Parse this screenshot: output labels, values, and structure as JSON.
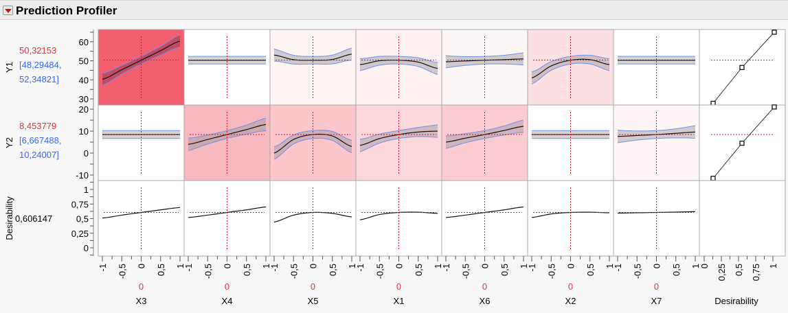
{
  "header": {
    "title": "Prediction Profiler",
    "menu_icon": "red-triangle-menu-icon"
  },
  "colors": {
    "current_value": "#e8303c",
    "ci": "#3c64ff",
    "refline": "#e0102a",
    "ci_band": "#d3d3d3",
    "ci_edge": "#7090e8"
  },
  "responses": [
    {
      "name": "Y1",
      "value": "50,32153",
      "ci_low": "[48,29484,",
      "ci_high": "52,34821]",
      "current": 50.32153,
      "ylim": [
        26.8,
        66.4
      ],
      "ticks": [
        30,
        40,
        50,
        60
      ],
      "tick_labels": [
        "30",
        "40",
        "50",
        "60"
      ],
      "desirability_fn": {
        "d": [
          0.13,
          0.55,
          1.02
        ],
        "y": [
          27.7,
          46.5,
          65
        ]
      }
    },
    {
      "name": "Y2",
      "value": "8,453779",
      "ci_low": "[6,667488,",
      "ci_high": "10,24007]",
      "current": 8.453779,
      "ylim": [
        -12.5,
        21.9
      ],
      "ticks": [
        -10,
        0,
        10,
        20
      ],
      "tick_labels": [
        "-10",
        "0",
        "10",
        "20"
      ],
      "desirability_fn": {
        "d": [
          0.13,
          0.55,
          1.02
        ],
        "y": [
          -11.5,
          4.5,
          21
        ]
      }
    }
  ],
  "desirability": {
    "name": "Desirability",
    "value": "0,606147",
    "current": 0.606147,
    "ylim": [
      -0.141,
      1.153
    ],
    "ticks": [
      0,
      0.25,
      0.5,
      0.75,
      1
    ],
    "tick_labels": [
      "0",
      "0,25",
      "0,5",
      "0,75",
      "1"
    ]
  },
  "factors": [
    {
      "name": "X3",
      "current": "0",
      "y1": [
        40.3,
        45.3,
        50.3,
        55.3,
        60.3
      ],
      "y2": [
        8.45,
        8.45,
        8.45,
        8.45,
        8.45
      ],
      "d": [
        0.51,
        0.56,
        0.606,
        0.65,
        0.69
      ],
      "bg1": "#f26070",
      "bg2": "#ffffff"
    },
    {
      "name": "X4",
      "current": "0",
      "y1": [
        50.3,
        50.3,
        50.3,
        50.3,
        50.3
      ],
      "y2": [
        4,
        6.2,
        8.45,
        10.7,
        13
      ],
      "d": [
        0.52,
        0.56,
        0.606,
        0.65,
        0.7
      ],
      "bg1": "#ffffff",
      "bg2": "#f8b8c0"
    },
    {
      "name": "X5",
      "current": "0",
      "y1": [
        53,
        50.6,
        50.3,
        50.7,
        53.5
      ],
      "y2": [
        0,
        6.2,
        8.45,
        7.8,
        3
      ],
      "d": [
        0.44,
        0.56,
        0.606,
        0.59,
        0.53
      ],
      "bg1": "#fdf4f4",
      "bg2": "#fbc6cc"
    },
    {
      "name": "X1",
      "current": "0",
      "y1": [
        48,
        50,
        50.3,
        49.3,
        46
      ],
      "y2": [
        3.5,
        6.6,
        8.45,
        9.6,
        10
      ],
      "d": [
        0.48,
        0.57,
        0.606,
        0.61,
        0.59
      ],
      "bg1": "#fcf0f1",
      "bg2": "#fcd7db"
    },
    {
      "name": "X6",
      "current": "0",
      "y1": [
        49.5,
        49.9,
        50.3,
        50.6,
        51
      ],
      "y2": [
        5,
        6.8,
        8.45,
        10.3,
        12.2
      ],
      "d": [
        0.52,
        0.56,
        0.606,
        0.65,
        0.7
      ],
      "bg1": "#fdf6f6",
      "bg2": "#fbcdd3"
    },
    {
      "name": "X2",
      "current": "0",
      "y1": [
        41,
        47.3,
        50.3,
        50.6,
        48
      ],
      "y2": [
        8.45,
        8.45,
        8.45,
        8.45,
        8.45
      ],
      "d": [
        0.52,
        0.58,
        0.606,
        0.61,
        0.6
      ],
      "bg1": "#fde0e3",
      "bg2": "#ffffff"
    },
    {
      "name": "X7",
      "current": "0",
      "y1": [
        50.3,
        50.3,
        50.3,
        50.3,
        50.3
      ],
      "y2": [
        7.6,
        8,
        8.45,
        9,
        9.6
      ],
      "d": [
        0.595,
        0.6,
        0.606,
        0.612,
        0.62
      ],
      "bg1": "#ffffff",
      "bg2": "#fef6f6"
    }
  ],
  "x_tick_labels": [
    "-1",
    "-0,5",
    "0",
    "0,5",
    "1"
  ],
  "desirability_axis": {
    "name": "Desirability",
    "tick_labels": [
      "0",
      "0,25",
      "0,5",
      "0,75",
      "1"
    ]
  }
}
